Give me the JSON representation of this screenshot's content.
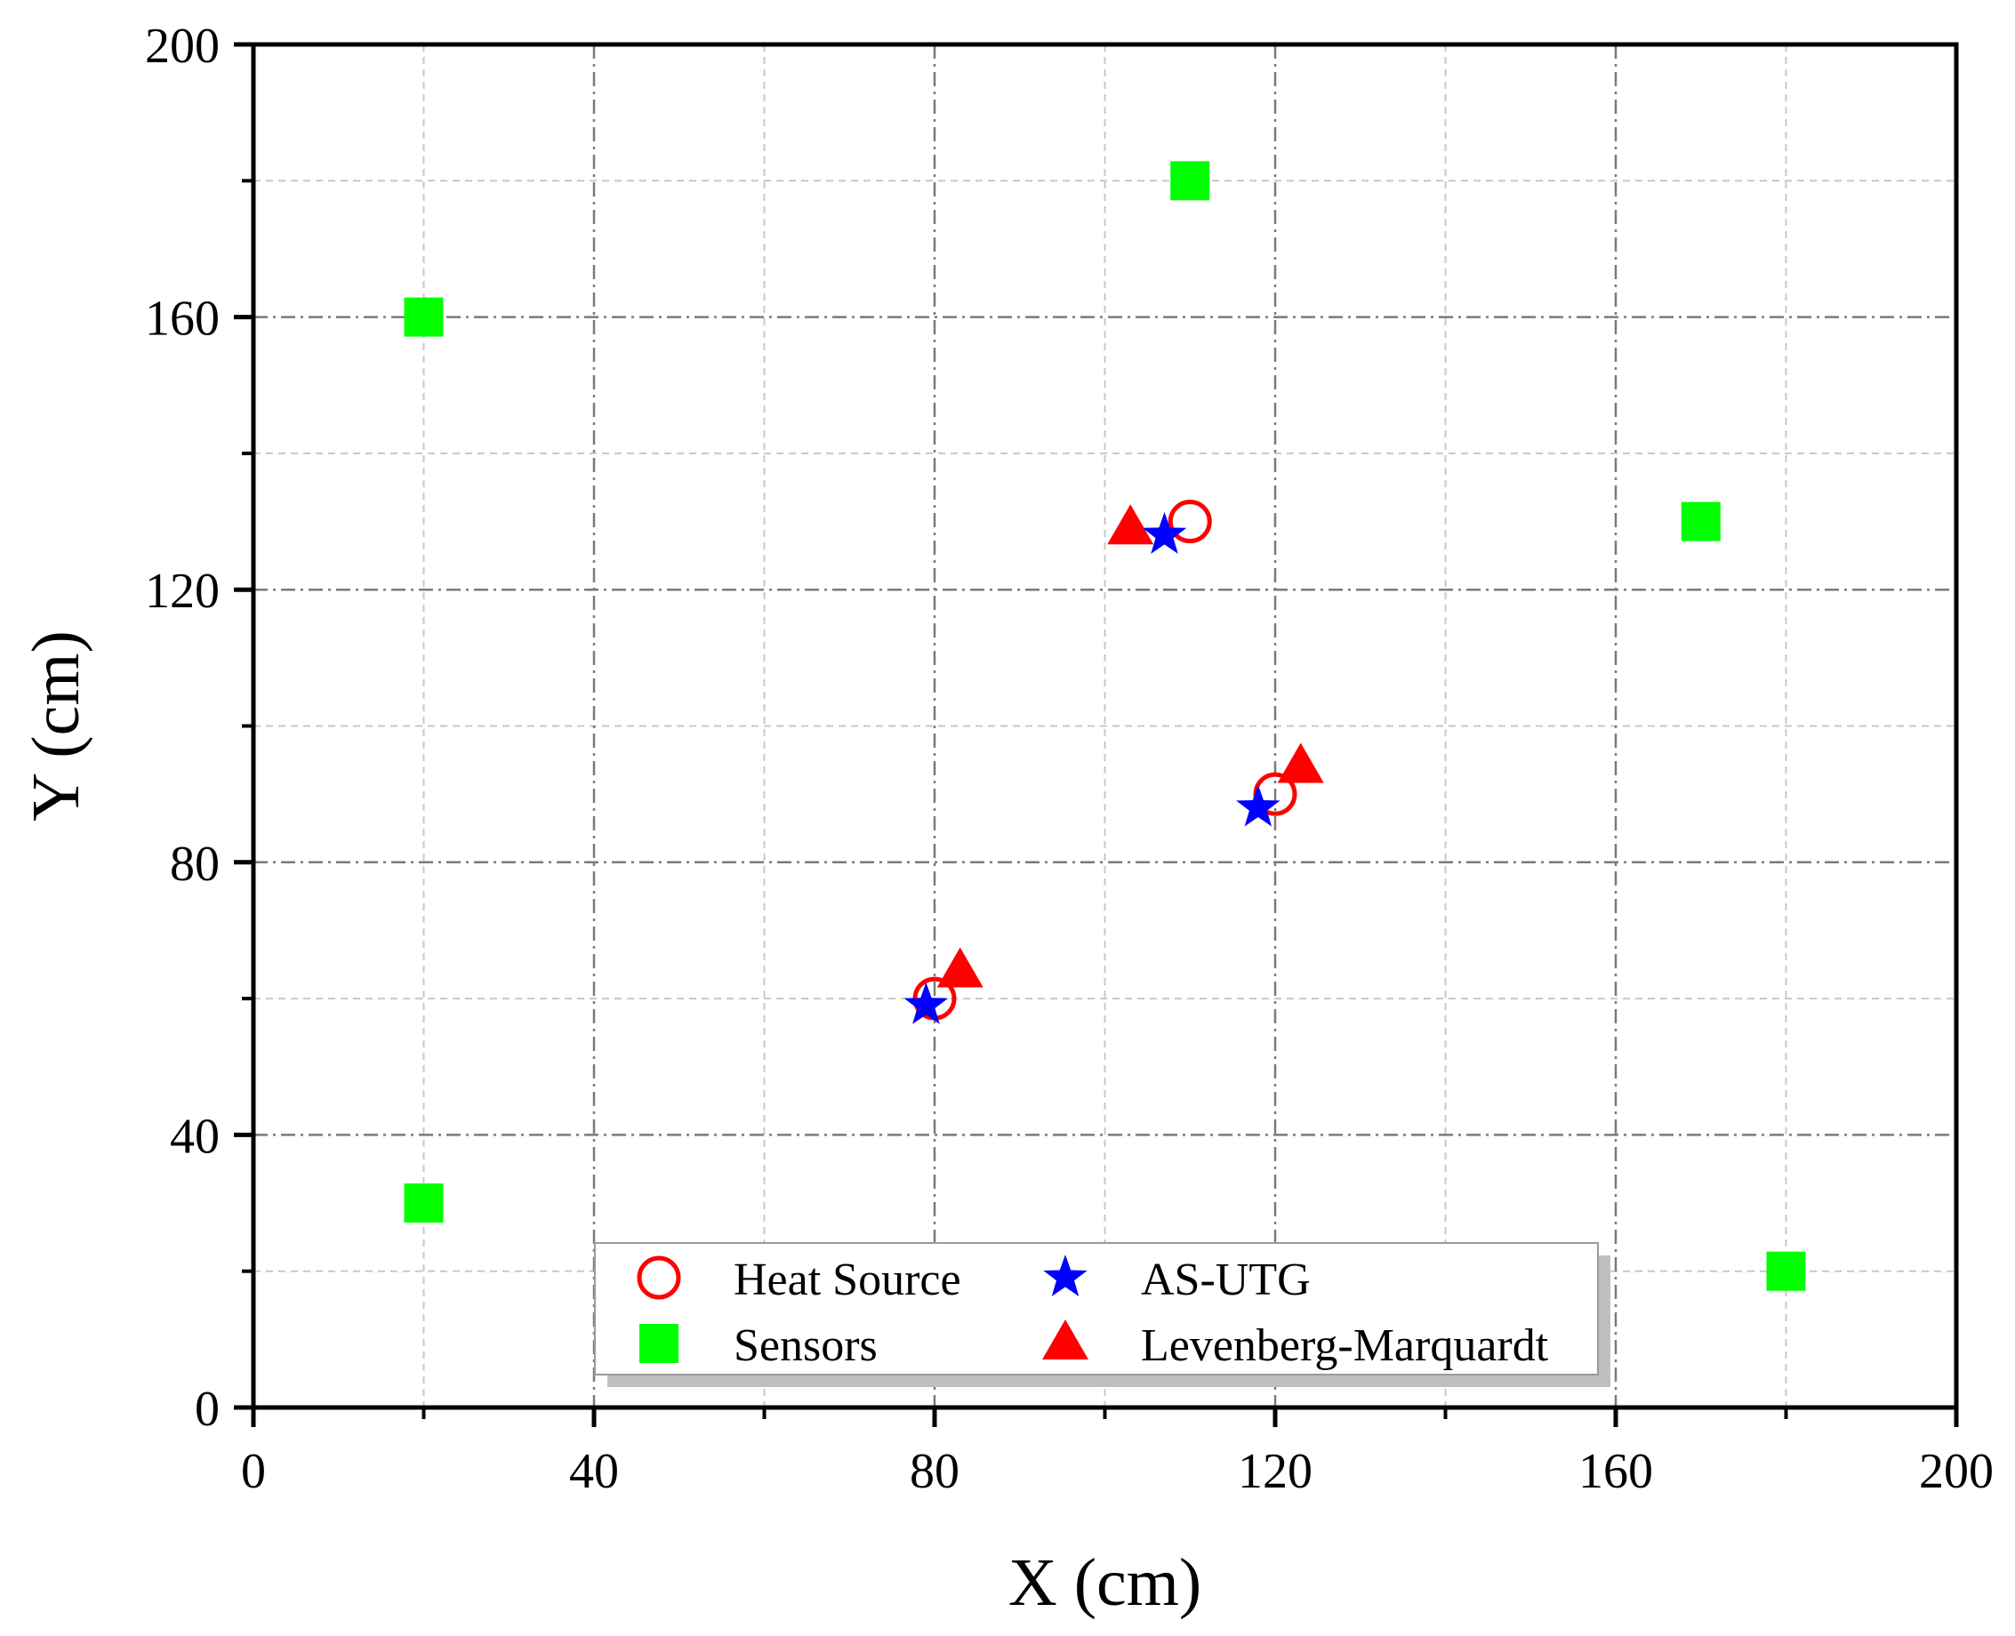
{
  "chart_data": {
    "type": "scatter",
    "title": "",
    "xlabel": "X (cm)",
    "ylabel": "Y (cm)",
    "xlim": [
      0,
      200
    ],
    "ylim": [
      0,
      200
    ],
    "major_ticks": [
      0,
      40,
      80,
      120,
      160,
      200
    ],
    "minor_ticks": [
      20,
      60,
      100,
      140,
      180
    ],
    "grid": true,
    "legend_position": "bottom-center",
    "series": [
      {
        "name": "Heat Source",
        "marker": "open-circle",
        "color": "#ff0000",
        "points": [
          {
            "x": 110,
            "y": 130
          },
          {
            "x": 120,
            "y": 90
          },
          {
            "x": 80,
            "y": 60
          }
        ]
      },
      {
        "name": "Sensors",
        "marker": "square",
        "color": "#00ff00",
        "points": [
          {
            "x": 110,
            "y": 180
          },
          {
            "x": 20,
            "y": 160
          },
          {
            "x": 170,
            "y": 130
          },
          {
            "x": 20,
            "y": 30
          },
          {
            "x": 180,
            "y": 20
          }
        ]
      },
      {
        "name": "AS-UTG",
        "marker": "star",
        "color": "#0000ff",
        "points": [
          {
            "x": 107,
            "y": 128
          },
          {
            "x": 118,
            "y": 88
          },
          {
            "x": 79,
            "y": 59
          }
        ]
      },
      {
        "name": "Levenberg-Marquardt",
        "marker": "triangle",
        "color": "#ff0000",
        "points": [
          {
            "x": 103,
            "y": 129
          },
          {
            "x": 123,
            "y": 94
          },
          {
            "x": 83,
            "y": 64
          }
        ]
      }
    ],
    "legend_order": [
      "Heat Source",
      "AS-UTG",
      "Sensors",
      "Levenberg-Marquardt"
    ]
  }
}
